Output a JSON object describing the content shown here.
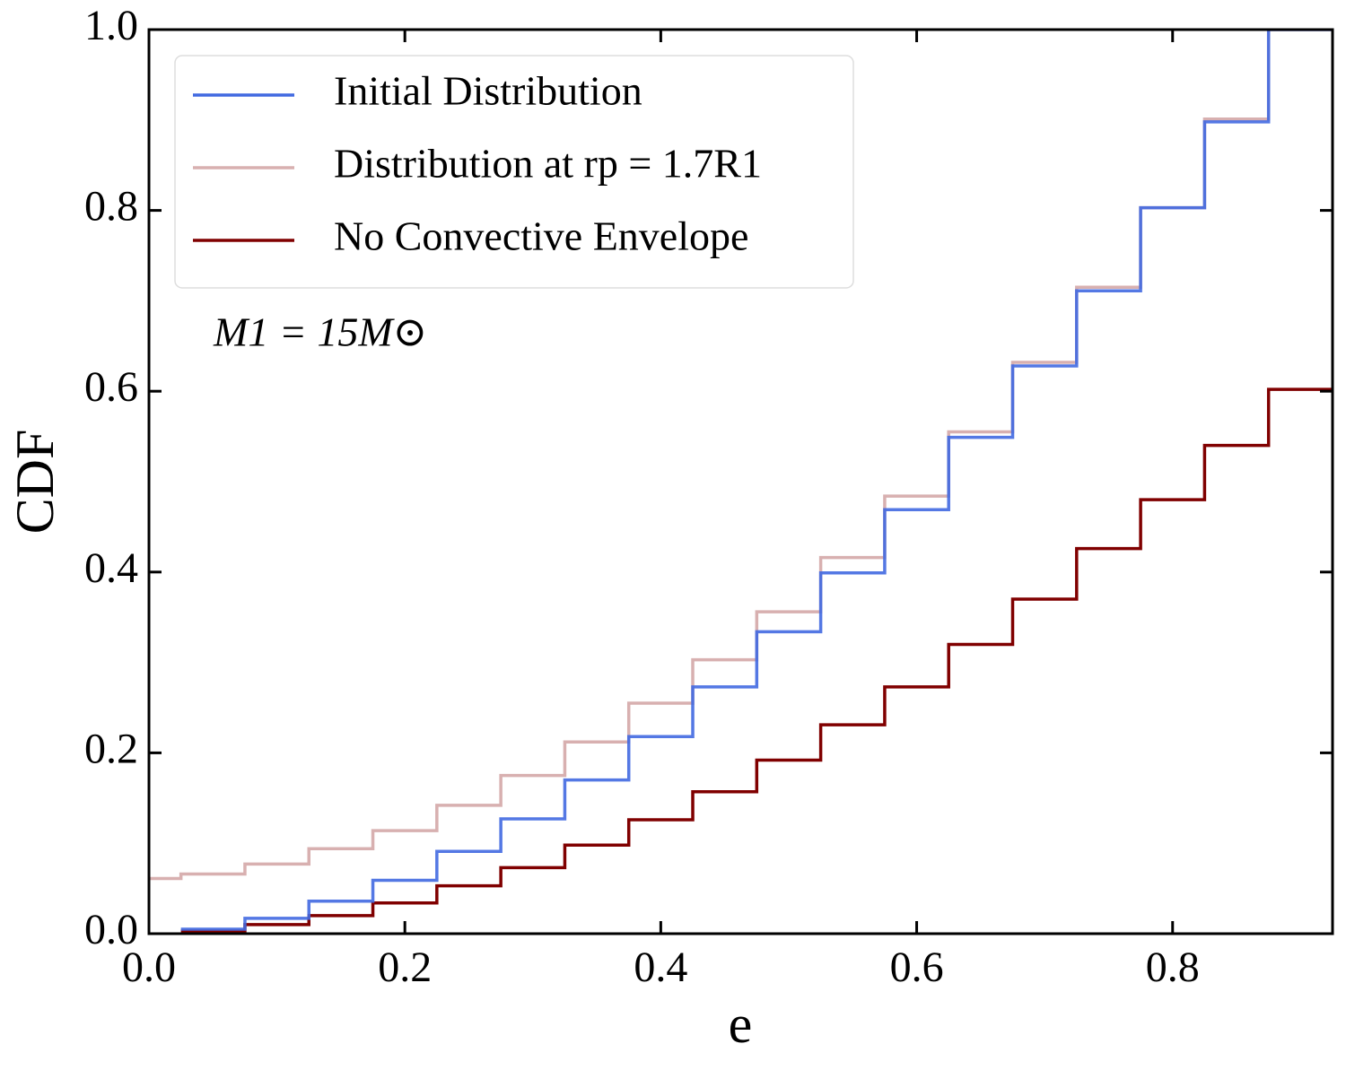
{
  "chart_data": {
    "type": "step",
    "xlabel": "e",
    "ylabel": "CDF",
    "annotation": "M1 = 15M⊙",
    "xlim": [
      0,
      0.925
    ],
    "ylim": [
      0,
      1
    ],
    "xticks": [
      {
        "value": 0,
        "label": "0.0"
      },
      0.2,
      0.4,
      0.6,
      0.8
    ],
    "yticks": [
      {
        "value": 0,
        "label": "0.0"
      },
      0.2,
      0.4,
      0.6,
      0.8,
      {
        "value": 1,
        "label": "1.0"
      }
    ],
    "legend": "upper left",
    "series": [
      {
        "name": "Initial Distribution",
        "color": "#4169e1",
        "x": [
          0.025,
          0.075,
          0.125,
          0.175,
          0.225,
          0.275,
          0.325,
          0.375,
          0.425,
          0.475,
          0.525,
          0.575,
          0.625,
          0.675,
          0.725,
          0.775,
          0.825,
          0.875
        ],
        "values": [
          0.005,
          0.017,
          0.036,
          0.059,
          0.091,
          0.127,
          0.17,
          0.218,
          0.273,
          0.334,
          0.399,
          0.469,
          0.549,
          0.628,
          0.711,
          0.803,
          0.898,
          1.0
        ]
      },
      {
        "name": "Distribution at rp = 1.7R1",
        "color": "#d8b0b0",
        "x": [
          0,
          0.025,
          0.075,
          0.125,
          0.175,
          0.225,
          0.275,
          0.325,
          0.375,
          0.425,
          0.475,
          0.525,
          0.575,
          0.625,
          0.675,
          0.725,
          0.775,
          0.825,
          0.875
        ],
        "values": [
          0.061,
          0.066,
          0.077,
          0.094,
          0.114,
          0.142,
          0.175,
          0.212,
          0.255,
          0.303,
          0.356,
          0.416,
          0.484,
          0.555,
          0.632,
          0.715,
          0.803,
          0.901,
          1.0
        ]
      },
      {
        "name": "No Convective Envelope",
        "color": "#800000",
        "x": [
          0.025,
          0.075,
          0.125,
          0.175,
          0.225,
          0.275,
          0.325,
          0.375,
          0.425,
          0.475,
          0.525,
          0.575,
          0.625,
          0.675,
          0.725,
          0.775,
          0.825,
          0.875
        ],
        "values": [
          0.003,
          0.01,
          0.02,
          0.034,
          0.053,
          0.073,
          0.098,
          0.126,
          0.157,
          0.192,
          0.231,
          0.273,
          0.32,
          0.37,
          0.426,
          0.48,
          0.54,
          0.602
        ]
      }
    ]
  }
}
